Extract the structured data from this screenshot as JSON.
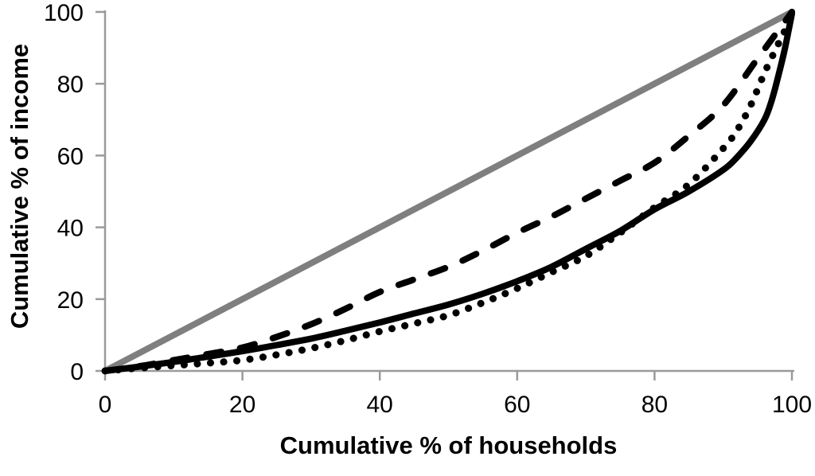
{
  "chart_data": {
    "type": "line",
    "title": "",
    "xlabel": "Cumulative % of households",
    "ylabel": "Cumulative % of income",
    "xlim": [
      0,
      100
    ],
    "ylim": [
      0,
      100
    ],
    "x_ticks": [
      0,
      20,
      40,
      60,
      80,
      100
    ],
    "y_ticks": [
      0,
      20,
      40,
      60,
      80,
      100
    ],
    "grid": false,
    "legend": "none",
    "axis_color": "#9a9a9a",
    "background": "#ffffff",
    "series": [
      {
        "name": "line-of-equality",
        "style": "solid",
        "color": "#7f7f7f",
        "width": 8,
        "points": [
          [
            0,
            0
          ],
          [
            100,
            100
          ]
        ]
      },
      {
        "name": "dashed-lorenz-curve",
        "style": "dashed",
        "color": "#000000",
        "width": 8,
        "points": [
          [
            0,
            0
          ],
          [
            5,
            1.3
          ],
          [
            10,
            3
          ],
          [
            15,
            4.7
          ],
          [
            20,
            6.5
          ],
          [
            25,
            9.5
          ],
          [
            30,
            13
          ],
          [
            35,
            17.3
          ],
          [
            40,
            22
          ],
          [
            45,
            25.5
          ],
          [
            50,
            29
          ],
          [
            55,
            33.5
          ],
          [
            60,
            38.5
          ],
          [
            65,
            43
          ],
          [
            70,
            48
          ],
          [
            75,
            53
          ],
          [
            80,
            58
          ],
          [
            85,
            65.5
          ],
          [
            90,
            74
          ],
          [
            95,
            87
          ],
          [
            100,
            100
          ]
        ]
      },
      {
        "name": "solid-lorenz-curve",
        "style": "solid",
        "color": "#000000",
        "width": 8,
        "points": [
          [
            0,
            0
          ],
          [
            5,
            1.2
          ],
          [
            10,
            2.5
          ],
          [
            15,
            4
          ],
          [
            20,
            5.5
          ],
          [
            25,
            7.2
          ],
          [
            30,
            9
          ],
          [
            35,
            11.2
          ],
          [
            40,
            13.5
          ],
          [
            45,
            16
          ],
          [
            50,
            18.5
          ],
          [
            55,
            21.5
          ],
          [
            60,
            25
          ],
          [
            65,
            29
          ],
          [
            70,
            34
          ],
          [
            75,
            39
          ],
          [
            80,
            45
          ],
          [
            85,
            50
          ],
          [
            90,
            56
          ],
          [
            92,
            59.5
          ],
          [
            94,
            64
          ],
          [
            96,
            70
          ],
          [
            97,
            75
          ],
          [
            98,
            82
          ],
          [
            99,
            90
          ],
          [
            100,
            99.5
          ]
        ]
      },
      {
        "name": "dotted-lorenz-curve",
        "style": "dotted",
        "color": "#000000",
        "width": 9,
        "points": [
          [
            0,
            0
          ],
          [
            5,
            0.8
          ],
          [
            10,
            1.5
          ],
          [
            15,
            2.2
          ],
          [
            20,
            3
          ],
          [
            25,
            4.5
          ],
          [
            30,
            6.3
          ],
          [
            35,
            8.5
          ],
          [
            40,
            11
          ],
          [
            45,
            13.2
          ],
          [
            50,
            15.5
          ],
          [
            55,
            19
          ],
          [
            60,
            23
          ],
          [
            65,
            27.5
          ],
          [
            70,
            32
          ],
          [
            75,
            38.5
          ],
          [
            80,
            45.5
          ],
          [
            85,
            52
          ],
          [
            90,
            62
          ],
          [
            92,
            67
          ],
          [
            94,
            74
          ],
          [
            96,
            83
          ],
          [
            98,
            91
          ],
          [
            99,
            95
          ],
          [
            100,
            100
          ]
        ]
      }
    ]
  }
}
